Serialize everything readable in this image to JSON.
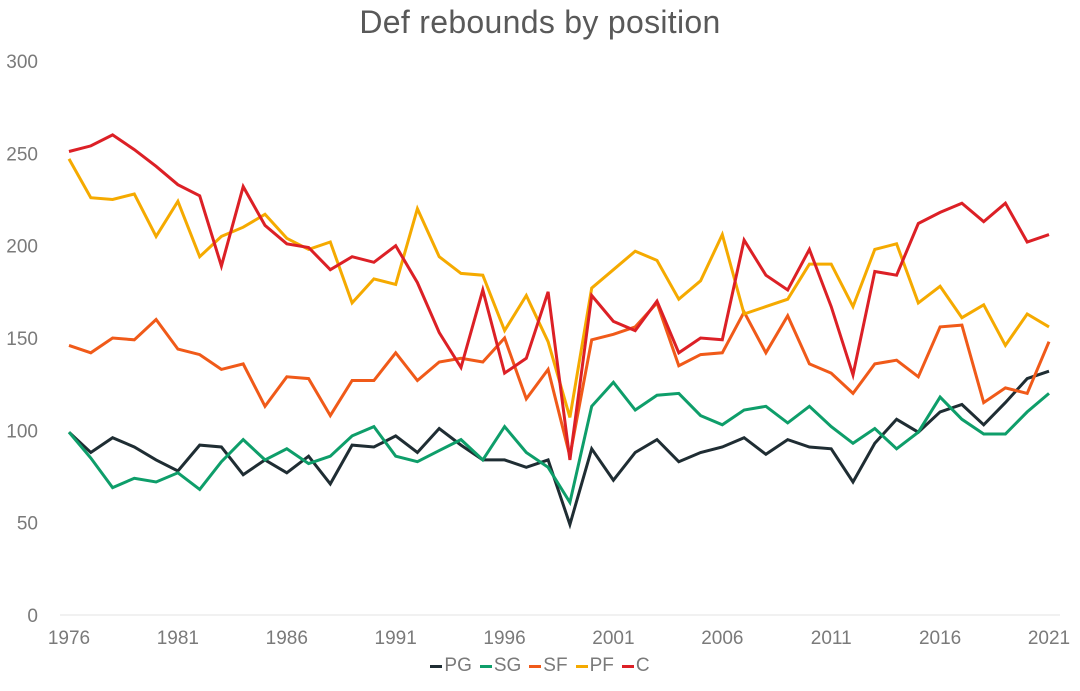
{
  "chart_data": {
    "type": "line",
    "title": "Def rebounds by position",
    "xlabel": "",
    "ylabel": "",
    "ylim": [
      0,
      300
    ],
    "yticks": [
      0,
      50,
      100,
      150,
      200,
      250,
      300
    ],
    "xtick_labels": [
      "1976",
      "1981",
      "1986",
      "1991",
      "1996",
      "2001",
      "2006",
      "2011",
      "2016",
      "2021"
    ],
    "grid": false,
    "legend_position": "bottom",
    "x": [
      1976,
      1977,
      1978,
      1979,
      1980,
      1981,
      1982,
      1983,
      1984,
      1985,
      1986,
      1987,
      1988,
      1989,
      1990,
      1991,
      1992,
      1993,
      1994,
      1995,
      1996,
      1997,
      1998,
      1999,
      2000,
      2001,
      2002,
      2003,
      2004,
      2005,
      2006,
      2007,
      2008,
      2009,
      2010,
      2011,
      2012,
      2013,
      2014,
      2015,
      2016,
      2017,
      2018,
      2019,
      2020,
      2021
    ],
    "series": [
      {
        "name": "PG",
        "color": "#1f2d33",
        "values": [
          99,
          88,
          96,
          91,
          84,
          78,
          92,
          91,
          76,
          84,
          77,
          86,
          71,
          92,
          91,
          97,
          88,
          101,
          92,
          84,
          84,
          80,
          84,
          49,
          90,
          73,
          88,
          95,
          83,
          88,
          91,
          96,
          87,
          95,
          91,
          90,
          72,
          93,
          106,
          99,
          110,
          114,
          103,
          115,
          128,
          132
        ]
      },
      {
        "name": "SG",
        "color": "#0e9e6a",
        "values": [
          99,
          85,
          69,
          74,
          72,
          77,
          68,
          83,
          95,
          84,
          90,
          82,
          86,
          97,
          102,
          86,
          83,
          89,
          95,
          84,
          102,
          88,
          80,
          61,
          113,
          126,
          111,
          119,
          120,
          108,
          103,
          111,
          113,
          104,
          113,
          102,
          93,
          101,
          90,
          99,
          118,
          106,
          98,
          98,
          110,
          120
        ]
      },
      {
        "name": "SF",
        "color": "#f05a19",
        "values": [
          146,
          142,
          150,
          149,
          160,
          144,
          141,
          133,
          136,
          113,
          129,
          128,
          108,
          127,
          127,
          142,
          127,
          137,
          139,
          137,
          150,
          117,
          133,
          86,
          149,
          152,
          156,
          169,
          135,
          141,
          142,
          164,
          142,
          162,
          136,
          131,
          120,
          136,
          138,
          129,
          156,
          157,
          115,
          123,
          120,
          148
        ]
      },
      {
        "name": "PF",
        "color": "#f5aa00",
        "values": [
          247,
          226,
          225,
          228,
          205,
          224,
          194,
          205,
          210,
          217,
          204,
          198,
          202,
          169,
          182,
          179,
          220,
          194,
          185,
          184,
          154,
          173,
          148,
          107,
          177,
          187,
          197,
          192,
          171,
          181,
          206,
          163,
          167,
          171,
          190,
          190,
          167,
          198,
          201,
          169,
          178,
          161,
          168,
          146,
          163,
          156
        ]
      },
      {
        "name": "C",
        "color": "#dc2026",
        "values": [
          251,
          254,
          260,
          252,
          243,
          233,
          227,
          189,
          232,
          211,
          201,
          199,
          187,
          194,
          191,
          200,
          180,
          153,
          134,
          176,
          131,
          139,
          175,
          84,
          173,
          159,
          154,
          170,
          142,
          150,
          149,
          203,
          184,
          176,
          198,
          167,
          130,
          186,
          184,
          212,
          218,
          223,
          213,
          223,
          202,
          206
        ]
      }
    ]
  }
}
